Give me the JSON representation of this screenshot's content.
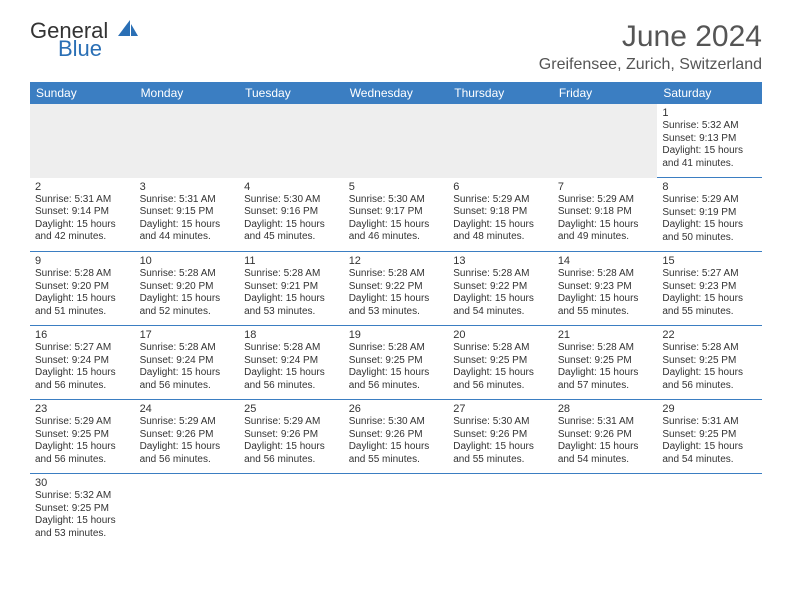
{
  "logo": {
    "text1": "General",
    "text2": "Blue"
  },
  "title": "June 2024",
  "location": "Greifensee, Zurich, Switzerland",
  "colors": {
    "header_bg": "#3b7ec2",
    "header_text": "#ffffff",
    "row_divider": "#3b7ec2",
    "blank_bg": "#eeeeee",
    "logo_accent": "#2a6fb5"
  },
  "daysOfWeek": [
    "Sunday",
    "Monday",
    "Tuesday",
    "Wednesday",
    "Thursday",
    "Friday",
    "Saturday"
  ],
  "weeks": [
    [
      null,
      null,
      null,
      null,
      null,
      null,
      {
        "n": "1",
        "sr": "5:32 AM",
        "ss": "9:13 PM",
        "dl": "15 hours and 41 minutes."
      }
    ],
    [
      {
        "n": "2",
        "sr": "5:31 AM",
        "ss": "9:14 PM",
        "dl": "15 hours and 42 minutes."
      },
      {
        "n": "3",
        "sr": "5:31 AM",
        "ss": "9:15 PM",
        "dl": "15 hours and 44 minutes."
      },
      {
        "n": "4",
        "sr": "5:30 AM",
        "ss": "9:16 PM",
        "dl": "15 hours and 45 minutes."
      },
      {
        "n": "5",
        "sr": "5:30 AM",
        "ss": "9:17 PM",
        "dl": "15 hours and 46 minutes."
      },
      {
        "n": "6",
        "sr": "5:29 AM",
        "ss": "9:18 PM",
        "dl": "15 hours and 48 minutes."
      },
      {
        "n": "7",
        "sr": "5:29 AM",
        "ss": "9:18 PM",
        "dl": "15 hours and 49 minutes."
      },
      {
        "n": "8",
        "sr": "5:29 AM",
        "ss": "9:19 PM",
        "dl": "15 hours and 50 minutes."
      }
    ],
    [
      {
        "n": "9",
        "sr": "5:28 AM",
        "ss": "9:20 PM",
        "dl": "15 hours and 51 minutes."
      },
      {
        "n": "10",
        "sr": "5:28 AM",
        "ss": "9:20 PM",
        "dl": "15 hours and 52 minutes."
      },
      {
        "n": "11",
        "sr": "5:28 AM",
        "ss": "9:21 PM",
        "dl": "15 hours and 53 minutes."
      },
      {
        "n": "12",
        "sr": "5:28 AM",
        "ss": "9:22 PM",
        "dl": "15 hours and 53 minutes."
      },
      {
        "n": "13",
        "sr": "5:28 AM",
        "ss": "9:22 PM",
        "dl": "15 hours and 54 minutes."
      },
      {
        "n": "14",
        "sr": "5:28 AM",
        "ss": "9:23 PM",
        "dl": "15 hours and 55 minutes."
      },
      {
        "n": "15",
        "sr": "5:27 AM",
        "ss": "9:23 PM",
        "dl": "15 hours and 55 minutes."
      }
    ],
    [
      {
        "n": "16",
        "sr": "5:27 AM",
        "ss": "9:24 PM",
        "dl": "15 hours and 56 minutes."
      },
      {
        "n": "17",
        "sr": "5:28 AM",
        "ss": "9:24 PM",
        "dl": "15 hours and 56 minutes."
      },
      {
        "n": "18",
        "sr": "5:28 AM",
        "ss": "9:24 PM",
        "dl": "15 hours and 56 minutes."
      },
      {
        "n": "19",
        "sr": "5:28 AM",
        "ss": "9:25 PM",
        "dl": "15 hours and 56 minutes."
      },
      {
        "n": "20",
        "sr": "5:28 AM",
        "ss": "9:25 PM",
        "dl": "15 hours and 56 minutes."
      },
      {
        "n": "21",
        "sr": "5:28 AM",
        "ss": "9:25 PM",
        "dl": "15 hours and 57 minutes."
      },
      {
        "n": "22",
        "sr": "5:28 AM",
        "ss": "9:25 PM",
        "dl": "15 hours and 56 minutes."
      }
    ],
    [
      {
        "n": "23",
        "sr": "5:29 AM",
        "ss": "9:25 PM",
        "dl": "15 hours and 56 minutes."
      },
      {
        "n": "24",
        "sr": "5:29 AM",
        "ss": "9:26 PM",
        "dl": "15 hours and 56 minutes."
      },
      {
        "n": "25",
        "sr": "5:29 AM",
        "ss": "9:26 PM",
        "dl": "15 hours and 56 minutes."
      },
      {
        "n": "26",
        "sr": "5:30 AM",
        "ss": "9:26 PM",
        "dl": "15 hours and 55 minutes."
      },
      {
        "n": "27",
        "sr": "5:30 AM",
        "ss": "9:26 PM",
        "dl": "15 hours and 55 minutes."
      },
      {
        "n": "28",
        "sr": "5:31 AM",
        "ss": "9:26 PM",
        "dl": "15 hours and 54 minutes."
      },
      {
        "n": "29",
        "sr": "5:31 AM",
        "ss": "9:25 PM",
        "dl": "15 hours and 54 minutes."
      }
    ],
    [
      {
        "n": "30",
        "sr": "5:32 AM",
        "ss": "9:25 PM",
        "dl": "15 hours and 53 minutes."
      },
      null,
      null,
      null,
      null,
      null,
      null
    ]
  ],
  "labels": {
    "sunrise": "Sunrise:",
    "sunset": "Sunset:",
    "daylight": "Daylight:"
  }
}
